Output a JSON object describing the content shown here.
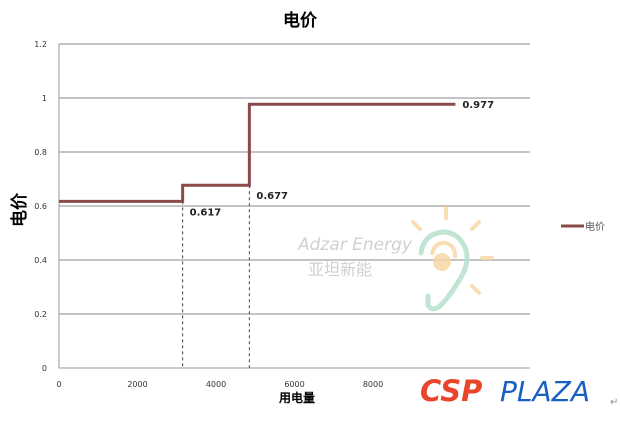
{
  "chart_data": {
    "type": "line",
    "step": true,
    "title": "电价",
    "xlabel": "用电量",
    "ylabel": "电价",
    "xlim": [
      0,
      12000
    ],
    "ylim": [
      0,
      1.2
    ],
    "xticks": [
      "0",
      "2000",
      "4000",
      "6000",
      "8000"
    ],
    "yticks": [
      "0",
      "0.2",
      "0.4",
      "0.6",
      "0.8",
      "1",
      "1.2"
    ],
    "grid": "horizontal",
    "legend": "right",
    "series": [
      {
        "name": "电价",
        "color": "#8b4a4a",
        "points": [
          [
            0,
            0.617
          ],
          [
            3150,
            0.617
          ],
          [
            3150,
            0.677
          ],
          [
            4850,
            0.677
          ],
          [
            4850,
            0.977
          ],
          [
            10100,
            0.977
          ]
        ]
      }
    ],
    "annotations": [
      {
        "text": "0.617",
        "x": 3150,
        "y": 0.617
      },
      {
        "text": "0.677",
        "x": 4850,
        "y": 0.677
      },
      {
        "text": "0.977",
        "x": 10100,
        "y": 0.977
      }
    ],
    "reference_lines": [
      3150,
      4850
    ]
  },
  "watermark": {
    "text_en": "Adzar Energy",
    "text_cn": "亚坦新能"
  },
  "logo": {
    "part1": "CSP",
    "part2": "PLAZA",
    "color1": "#e8452a",
    "color2": "#1a5fc4"
  }
}
